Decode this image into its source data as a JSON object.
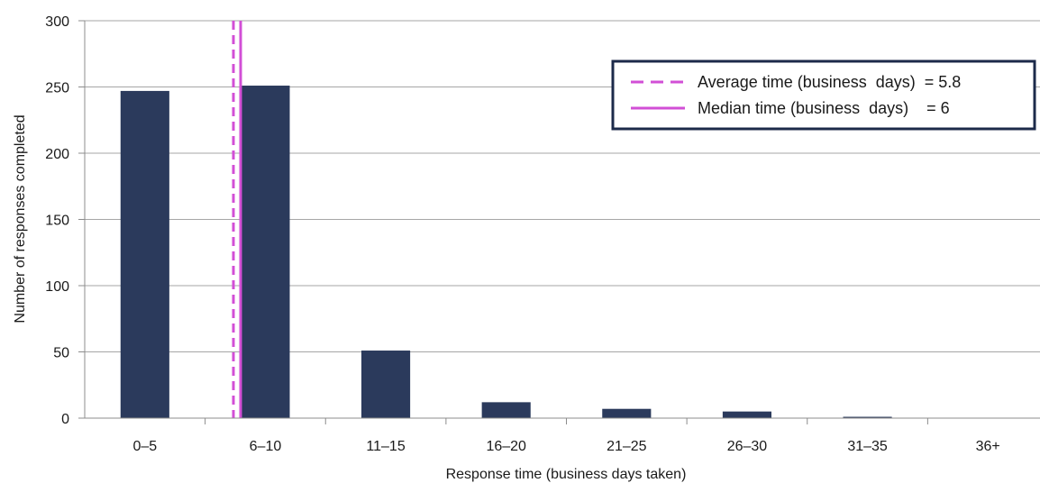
{
  "chart_data": {
    "type": "bar",
    "categories": [
      "0–5",
      "6–10",
      "11–15",
      "16–20",
      "21–25",
      "26–30",
      "31–35",
      "36+"
    ],
    "values": [
      247,
      251,
      51,
      12,
      7,
      5,
      1,
      0
    ],
    "title": "",
    "xlabel": "Response time (business days taken)",
    "ylabel": "Number of responses completed",
    "ylim": [
      0,
      300
    ],
    "yticks": [
      0,
      50,
      100,
      150,
      200,
      250,
      300
    ],
    "grid": true,
    "bar_color": "#2b3a5c",
    "reference_lines": [
      {
        "label": "Average time (business  days)  = 5.8",
        "value": 5.8,
        "style": "dashed",
        "color": "#d24fd6"
      },
      {
        "label": "Median time (business  days)    = 6",
        "value": 6,
        "style": "solid",
        "color": "#d24fd6"
      }
    ],
    "legend_position": "top-right"
  }
}
